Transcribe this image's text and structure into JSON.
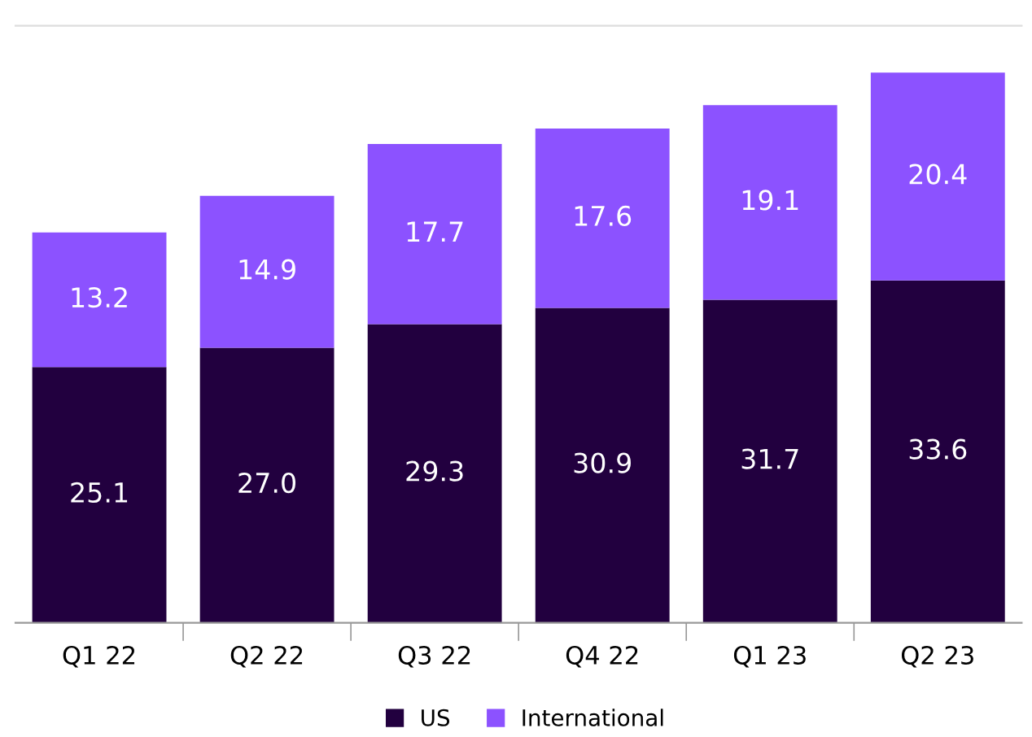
{
  "chart_data": {
    "type": "bar",
    "stacked": true,
    "legend": "bottom",
    "grid": false,
    "categories": [
      "Q1 22",
      "Q2 22",
      "Q3 22",
      "Q4 22",
      "Q1 23",
      "Q2 23"
    ],
    "series": [
      {
        "name": "US",
        "color": "#22003f",
        "values": [
          25.1,
          27.0,
          29.3,
          30.9,
          31.7,
          33.6
        ],
        "value_labels": [
          "25.1",
          "27.0",
          "29.3",
          "30.9",
          "31.7",
          "33.6"
        ]
      },
      {
        "name": "International",
        "color": "#8c52ff",
        "values": [
          13.2,
          14.9,
          17.7,
          17.6,
          19.1,
          20.4
        ],
        "value_labels": [
          "13.2",
          "14.9",
          "17.7",
          "17.6",
          "19.1",
          "20.4"
        ]
      }
    ]
  }
}
